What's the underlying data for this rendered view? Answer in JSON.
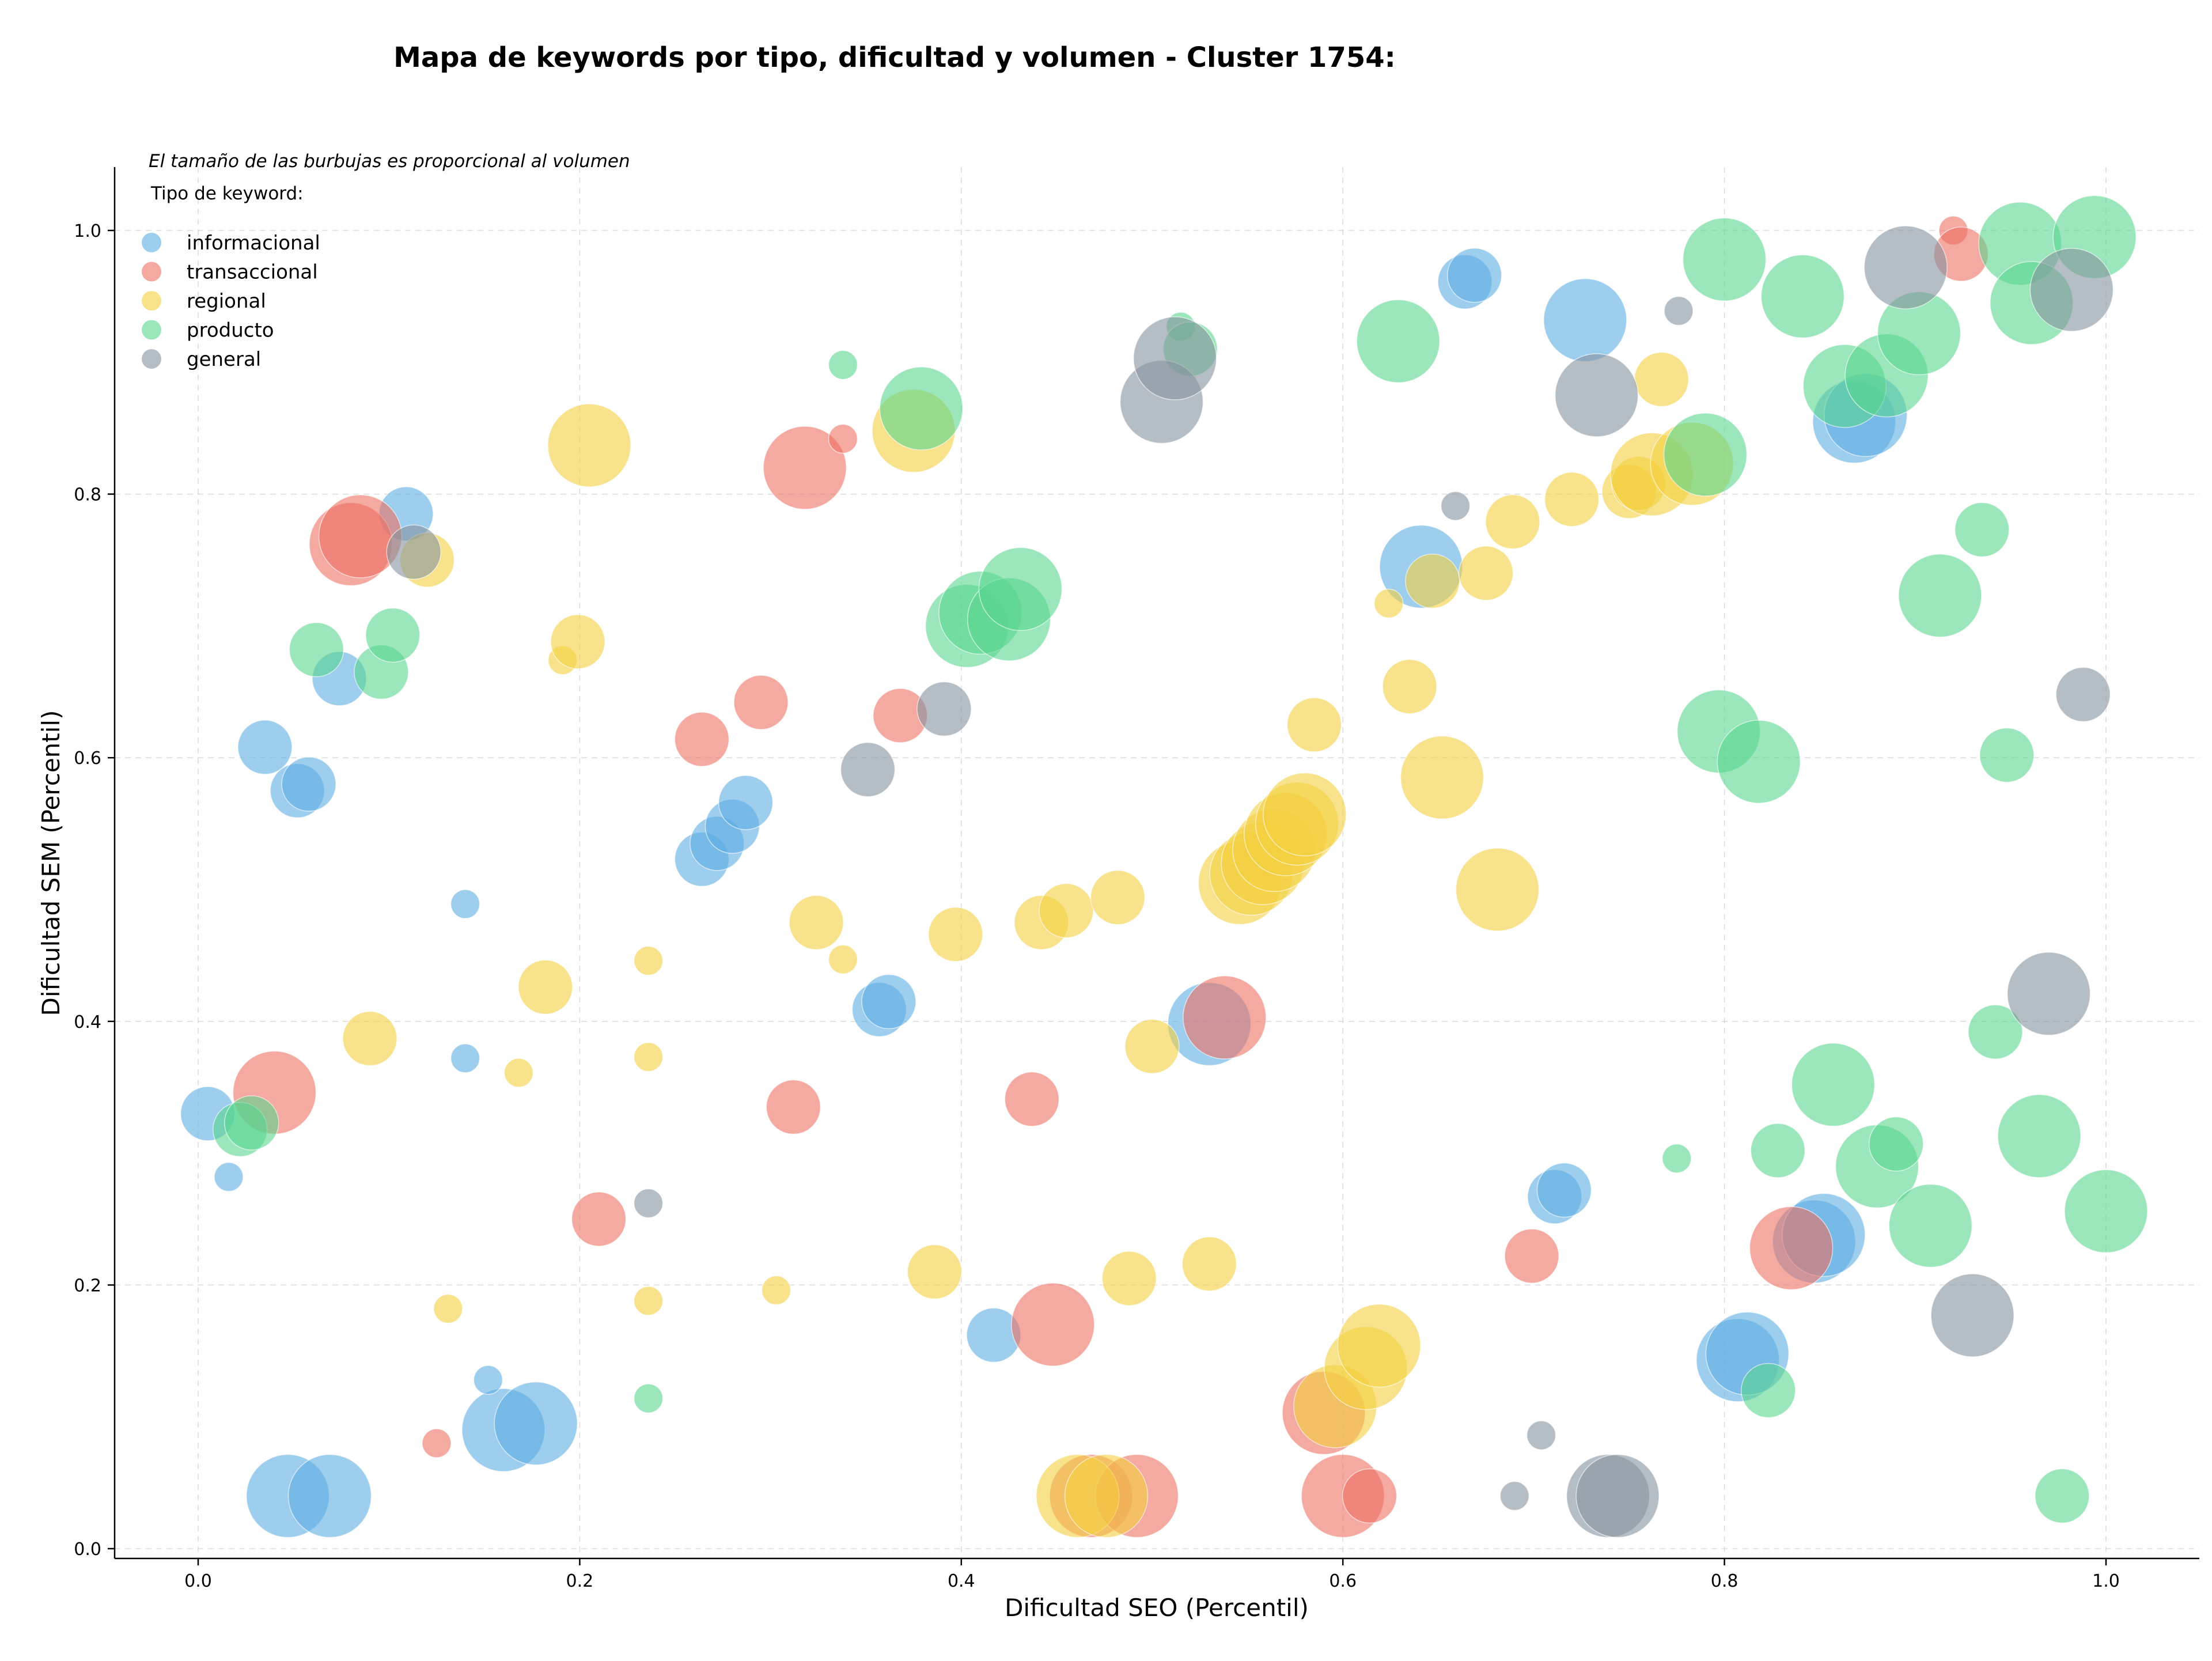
{
  "chart_data": {
    "type": "scatter",
    "title": "Mapa de keywords por tipo, dificultad y volumen - Cluster 1754:",
    "xlabel": "Dificultad SEO (Percentil)",
    "ylabel": "Dificultad SEM (Percentil)",
    "xlim": [
      -0.04,
      1.05
    ],
    "ylim": [
      -0.005,
      1.05
    ],
    "xticks": [
      "0.0",
      "0.2",
      "0.4",
      "0.6",
      "0.8",
      "1.0"
    ],
    "yticks": [
      "0.0",
      "0.2",
      "0.4",
      "0.6",
      "0.8",
      "1.0"
    ],
    "grid": true,
    "annotation": "El tamaño de las burbujas es proporcional al volumen",
    "legend_title": "Tipo de keyword:",
    "legend_position": "top-left",
    "series": [
      {
        "name": "informacional",
        "color": "#5dade2",
        "points": [
          [
            0.047,
            0.04,
            3
          ],
          [
            0.069,
            0.04,
            3
          ],
          [
            0.16,
            0.09,
            3
          ],
          [
            0.177,
            0.095,
            3
          ],
          [
            0.152,
            0.128,
            1
          ],
          [
            0.016,
            0.282,
            1
          ],
          [
            0.005,
            0.33,
            2
          ],
          [
            0.14,
            0.372,
            1
          ],
          [
            0.14,
            0.489,
            1
          ],
          [
            0.035,
            0.608,
            2
          ],
          [
            0.052,
            0.575,
            2
          ],
          [
            0.058,
            0.58,
            2
          ],
          [
            0.074,
            0.66,
            2
          ],
          [
            0.109,
            0.785,
            2
          ],
          [
            0.264,
            0.523,
            2
          ],
          [
            0.272,
            0.535,
            2
          ],
          [
            0.28,
            0.548,
            2
          ],
          [
            0.287,
            0.566,
            2
          ],
          [
            0.357,
            0.409,
            2
          ],
          [
            0.362,
            0.415,
            2
          ],
          [
            0.417,
            0.162,
            2
          ],
          [
            0.53,
            0.398,
            3
          ],
          [
            0.641,
            0.745,
            3
          ],
          [
            0.664,
            0.961,
            2
          ],
          [
            0.669,
            0.966,
            2
          ],
          [
            0.727,
            0.932,
            3
          ],
          [
            0.711,
            0.267,
            2
          ],
          [
            0.716,
            0.272,
            2
          ],
          [
            0.807,
            0.143,
            3
          ],
          [
            0.812,
            0.148,
            3
          ],
          [
            0.847,
            0.233,
            3
          ],
          [
            0.852,
            0.238,
            3
          ],
          [
            0.868,
            0.855,
            3
          ],
          [
            0.874,
            0.86,
            3
          ]
        ]
      },
      {
        "name": "transaccional",
        "color": "#ec7063",
        "points": [
          [
            0.04,
            0.346,
            3
          ],
          [
            0.08,
            0.762,
            3
          ],
          [
            0.085,
            0.768,
            3
          ],
          [
            0.125,
            0.08,
            1
          ],
          [
            0.21,
            0.25,
            2
          ],
          [
            0.264,
            0.614,
            2
          ],
          [
            0.295,
            0.642,
            2
          ],
          [
            0.312,
            0.335,
            2
          ],
          [
            0.318,
            0.82,
            3
          ],
          [
            0.338,
            0.842,
            1
          ],
          [
            0.368,
            0.632,
            2
          ],
          [
            0.437,
            0.341,
            2
          ],
          [
            0.448,
            0.17,
            3
          ],
          [
            0.468,
            0.04,
            3
          ],
          [
            0.492,
            0.04,
            3
          ],
          [
            0.538,
            0.403,
            3
          ],
          [
            0.59,
            0.103,
            3
          ],
          [
            0.6,
            0.04,
            3
          ],
          [
            0.614,
            0.04,
            2
          ],
          [
            0.699,
            0.222,
            2
          ],
          [
            0.835,
            0.228,
            3
          ],
          [
            0.92,
            1.0,
            1
          ],
          [
            0.924,
            0.982,
            2
          ]
        ]
      },
      {
        "name": "regional",
        "color": "#f4d03f",
        "points": [
          [
            0.09,
            0.387,
            2
          ],
          [
            0.12,
            0.75,
            2
          ],
          [
            0.131,
            0.182,
            1
          ],
          [
            0.182,
            0.426,
            2
          ],
          [
            0.168,
            0.361,
            1
          ],
          [
            0.191,
            0.674,
            1
          ],
          [
            0.199,
            0.688,
            2
          ],
          [
            0.205,
            0.837,
            3
          ],
          [
            0.236,
            0.446,
            1
          ],
          [
            0.236,
            0.373,
            1
          ],
          [
            0.236,
            0.188,
            1
          ],
          [
            0.303,
            0.196,
            1
          ],
          [
            0.324,
            0.475,
            2
          ],
          [
            0.338,
            0.447,
            1
          ],
          [
            0.375,
            0.848,
            3
          ],
          [
            0.397,
            0.466,
            2
          ],
          [
            0.386,
            0.21,
            2
          ],
          [
            0.442,
            0.475,
            2
          ],
          [
            0.455,
            0.484,
            2
          ],
          [
            0.461,
            0.04,
            3
          ],
          [
            0.476,
            0.04,
            3
          ],
          [
            0.482,
            0.494,
            2
          ],
          [
            0.488,
            0.205,
            2
          ],
          [
            0.5,
            0.381,
            2
          ],
          [
            0.53,
            0.216,
            2
          ],
          [
            0.546,
            0.505,
            3
          ],
          [
            0.552,
            0.512,
            3
          ],
          [
            0.558,
            0.52,
            3
          ],
          [
            0.564,
            0.53,
            3
          ],
          [
            0.57,
            0.542,
            3
          ],
          [
            0.576,
            0.55,
            3
          ],
          [
            0.58,
            0.557,
            3
          ],
          [
            0.585,
            0.625,
            2
          ],
          [
            0.596,
            0.108,
            3
          ],
          [
            0.612,
            0.137,
            3
          ],
          [
            0.619,
            0.154,
            3
          ],
          [
            0.624,
            0.717,
            1
          ],
          [
            0.635,
            0.654,
            2
          ],
          [
            0.647,
            0.734,
            2
          ],
          [
            0.652,
            0.585,
            3
          ],
          [
            0.675,
            0.74,
            2
          ],
          [
            0.681,
            0.5,
            3
          ],
          [
            0.689,
            0.779,
            2
          ],
          [
            0.72,
            0.796,
            2
          ],
          [
            0.75,
            0.802,
            2
          ],
          [
            0.755,
            0.808,
            2
          ],
          [
            0.762,
            0.815,
            3
          ],
          [
            0.767,
            0.887,
            2
          ],
          [
            0.783,
            0.823,
            3
          ]
        ]
      },
      {
        "name": "producto",
        "color": "#58d68d",
        "points": [
          [
            0.022,
            0.318,
            2
          ],
          [
            0.028,
            0.323,
            2
          ],
          [
            0.062,
            0.682,
            2
          ],
          [
            0.096,
            0.665,
            2
          ],
          [
            0.102,
            0.693,
            2
          ],
          [
            0.236,
            0.114,
            1
          ],
          [
            0.338,
            0.898,
            1
          ],
          [
            0.379,
            0.865,
            3
          ],
          [
            0.403,
            0.7,
            3
          ],
          [
            0.41,
            0.71,
            3
          ],
          [
            0.425,
            0.705,
            3
          ],
          [
            0.431,
            0.728,
            3
          ],
          [
            0.515,
            0.927,
            1
          ],
          [
            0.52,
            0.91,
            2
          ],
          [
            0.629,
            0.916,
            3
          ],
          [
            0.79,
            0.83,
            3
          ],
          [
            0.775,
            0.296,
            1
          ],
          [
            0.797,
            0.62,
            3
          ],
          [
            0.8,
            0.978,
            3
          ],
          [
            0.818,
            0.597,
            3
          ],
          [
            0.823,
            0.12,
            2
          ],
          [
            0.828,
            0.302,
            2
          ],
          [
            0.841,
            0.95,
            3
          ],
          [
            0.857,
            0.352,
            3
          ],
          [
            0.863,
            0.882,
            3
          ],
          [
            0.88,
            0.29,
            3
          ],
          [
            0.885,
            0.89,
            3
          ],
          [
            0.89,
            0.307,
            2
          ],
          [
            0.902,
            0.922,
            3
          ],
          [
            0.908,
            0.245,
            3
          ],
          [
            0.913,
            0.723,
            3
          ],
          [
            0.935,
            0.773,
            2
          ],
          [
            0.942,
            0.392,
            2
          ],
          [
            0.948,
            0.602,
            2
          ],
          [
            0.955,
            0.99,
            3
          ],
          [
            0.961,
            0.945,
            3
          ],
          [
            0.965,
            0.313,
            3
          ],
          [
            0.977,
            0.04,
            2
          ],
          [
            0.994,
            0.995,
            3
          ],
          [
            1.0,
            0.256,
            3
          ]
        ]
      },
      {
        "name": "general",
        "color": "#85929e",
        "points": [
          [
            0.113,
            0.756,
            2
          ],
          [
            0.236,
            0.262,
            1
          ],
          [
            0.351,
            0.591,
            2
          ],
          [
            0.391,
            0.637,
            2
          ],
          [
            0.505,
            0.87,
            3
          ],
          [
            0.512,
            0.903,
            3
          ],
          [
            0.659,
            0.791,
            1
          ],
          [
            0.69,
            0.04,
            1
          ],
          [
            0.704,
            0.086,
            1
          ],
          [
            0.733,
            0.875,
            3
          ],
          [
            0.739,
            0.04,
            3
          ],
          [
            0.744,
            0.04,
            3
          ],
          [
            0.776,
            0.939,
            1
          ],
          [
            0.895,
            0.972,
            3
          ],
          [
            0.93,
            0.177,
            3
          ],
          [
            0.97,
            0.421,
            3
          ],
          [
            0.982,
            0.955,
            3
          ],
          [
            0.988,
            0.648,
            2
          ]
        ]
      }
    ]
  }
}
